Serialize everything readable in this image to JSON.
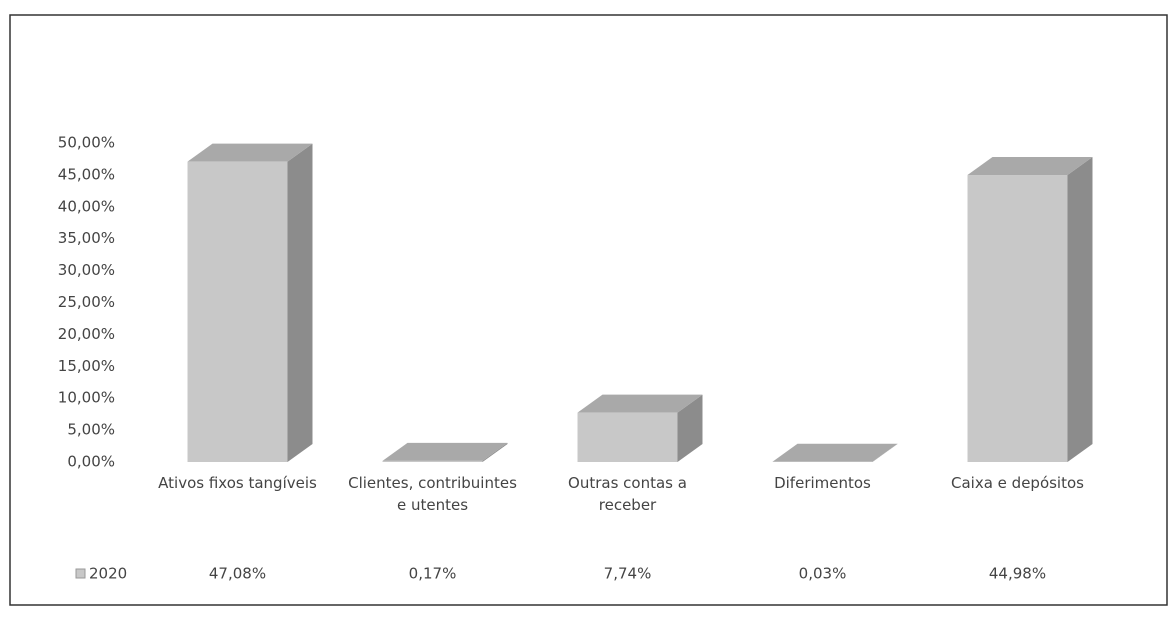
{
  "chart_data": {
    "type": "bar3d",
    "categories": [
      "Ativos fixos tangíveis",
      "Clientes, contribuintes e utentes",
      "Outras contas a receber",
      "Diferimentos",
      "Caixa e depósitos"
    ],
    "series": [
      {
        "name": "2020",
        "color": "#c8c8c8",
        "values": [
          47.08,
          0.17,
          7.74,
          0.03,
          44.98
        ],
        "value_labels": [
          "47,08%",
          "0,17%",
          "7,74%",
          "0,03%",
          "44,98%"
        ]
      }
    ],
    "ylim": [
      0,
      50
    ],
    "yticks": [
      {
        "value": 0,
        "label": "0,00%"
      },
      {
        "value": 5,
        "label": "5,00%"
      },
      {
        "value": 10,
        "label": "10,00%"
      },
      {
        "value": 15,
        "label": "15,00%"
      },
      {
        "value": 20,
        "label": "20,00%"
      },
      {
        "value": 25,
        "label": "25,00%"
      },
      {
        "value": 30,
        "label": "30,00%"
      },
      {
        "value": 35,
        "label": "35,00%"
      },
      {
        "value": 40,
        "label": "40,00%"
      },
      {
        "value": 45,
        "label": "45,00%"
      },
      {
        "value": 50,
        "label": "50,00%"
      }
    ],
    "grid": false
  }
}
